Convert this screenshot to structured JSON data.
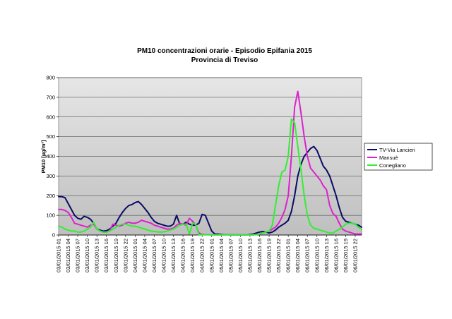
{
  "chart_data": {
    "type": "line",
    "title": "PM10 concentrazioni orarie - Episodio Epifania 2015",
    "subtitle": "Provincia di Treviso",
    "xlabel": "",
    "ylabel": "PM10 [µg/m³]",
    "ylim": [
      0,
      800
    ],
    "yticks": [
      0,
      100,
      200,
      300,
      400,
      500,
      600,
      700,
      800
    ],
    "grid": true,
    "legend_position": "right",
    "x_tick_labels": [
      "03/01/2015 01",
      "03/01/2015 04",
      "03/01/2015 07",
      "03/01/2015 10",
      "03/01/2015 13",
      "03/01/2015 16",
      "03/01/2015 19",
      "03/01/2015 22",
      "04/01/2015 01",
      "04/01/2015 04",
      "04/01/2015 07",
      "04/01/2015 10",
      "04/01/2015 13",
      "04/01/2015 16",
      "04/01/2015 19",
      "04/01/2015 22",
      "05/01/2015 01",
      "05/01/2015 04",
      "05/01/2015 07",
      "05/01/2015 10",
      "05/01/2015 13",
      "05/01/2015 16",
      "05/01/2015 19",
      "05/01/2015 22",
      "06/01/2015 01",
      "06/01/2015 04",
      "06/01/2015 07",
      "06/01/2015 10",
      "06/01/2015 13",
      "06/01/2015 16",
      "06/01/2015 19",
      "06/01/2015 22"
    ],
    "x_hours_count": 96,
    "series": [
      {
        "name": "TV-Via Lancieri",
        "color": "#0b0b66",
        "values": [
          195,
          195,
          190,
          160,
          130,
          100,
          85,
          80,
          95,
          90,
          80,
          60,
          30,
          25,
          20,
          22,
          30,
          45,
          60,
          90,
          115,
          135,
          150,
          155,
          165,
          170,
          155,
          135,
          115,
          90,
          70,
          60,
          55,
          50,
          45,
          45,
          55,
          100,
          55,
          55,
          65,
          55,
          50,
          50,
          60,
          105,
          100,
          60,
          20,
          5,
          5,
          3,
          2,
          2,
          1,
          1,
          1,
          1,
          1,
          1,
          3,
          5,
          10,
          15,
          18,
          15,
          10,
          15,
          25,
          40,
          50,
          60,
          75,
          120,
          200,
          300,
          360,
          400,
          420,
          440,
          450,
          430,
          390,
          350,
          330,
          300,
          250,
          200,
          140,
          90,
          70,
          65,
          60,
          55,
          50,
          40
        ]
      },
      {
        "name": "Mansuè",
        "color": "#dd22cc",
        "values": [
          130,
          130,
          125,
          115,
          90,
          60,
          55,
          50,
          45,
          40,
          50,
          55,
          30,
          20,
          15,
          15,
          20,
          55,
          50,
          45,
          50,
          60,
          65,
          60,
          60,
          65,
          75,
          70,
          65,
          60,
          50,
          45,
          40,
          35,
          30,
          30,
          35,
          50,
          60,
          55,
          50,
          85,
          70,
          50,
          10,
          3,
          2,
          2,
          1,
          1,
          1,
          1,
          1,
          1,
          1,
          1,
          1,
          1,
          1,
          1,
          1,
          1,
          2,
          5,
          10,
          15,
          20,
          30,
          40,
          60,
          90,
          130,
          200,
          400,
          650,
          730,
          620,
          500,
          400,
          340,
          320,
          300,
          280,
          250,
          230,
          150,
          110,
          95,
          60,
          30,
          20,
          15,
          10,
          5,
          5,
          5
        ]
      },
      {
        "name": "Conegliano",
        "color": "#33ee33",
        "values": [
          45,
          40,
          30,
          25,
          20,
          20,
          15,
          15,
          20,
          30,
          40,
          65,
          30,
          20,
          15,
          15,
          20,
          30,
          40,
          50,
          55,
          55,
          50,
          45,
          45,
          40,
          35,
          30,
          25,
          20,
          18,
          16,
          15,
          16,
          20,
          25,
          30,
          40,
          50,
          55,
          55,
          5,
          60,
          55,
          1,
          1,
          1,
          1,
          1,
          1,
          1,
          1,
          1,
          1,
          1,
          1,
          1,
          1,
          1,
          1,
          1,
          1,
          2,
          5,
          10,
          15,
          20,
          50,
          150,
          250,
          320,
          330,
          400,
          590,
          570,
          450,
          330,
          200,
          100,
          50,
          35,
          30,
          25,
          20,
          15,
          10,
          10,
          20,
          30,
          40,
          55,
          60,
          60,
          55,
          40,
          30
        ]
      }
    ]
  }
}
